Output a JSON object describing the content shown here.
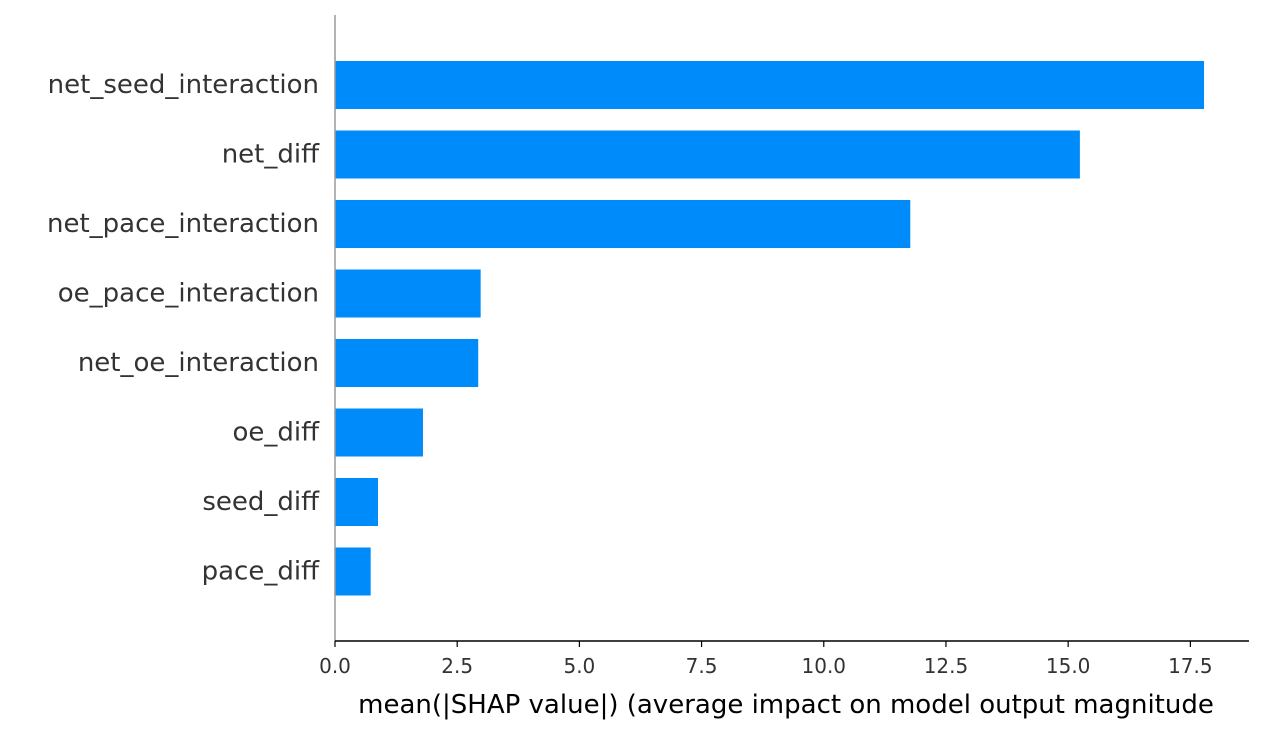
{
  "chart_data": {
    "type": "bar",
    "orientation": "horizontal",
    "categories": [
      "net_seed_interaction",
      "net_diff",
      "net_pace_interaction",
      "oe_pace_interaction",
      "net_oe_interaction",
      "oe_diff",
      "seed_diff",
      "pace_diff"
    ],
    "values": [
      17.78,
      15.24,
      11.77,
      2.98,
      2.93,
      1.8,
      0.88,
      0.73
    ],
    "title": "",
    "xlabel": "mean(|SHAP value|) (average impact on model output magnitude",
    "ylabel": "",
    "xticks": [
      "0.0",
      "2.5",
      "5.0",
      "7.5",
      "10.0",
      "12.5",
      "15.0",
      "17.5"
    ],
    "xlim": [
      0,
      18.7
    ],
    "grid": false,
    "legend": "none",
    "bar_color": "#008bfb",
    "left_spine_color": "#999999",
    "bottom_spine_color": "#000000"
  }
}
